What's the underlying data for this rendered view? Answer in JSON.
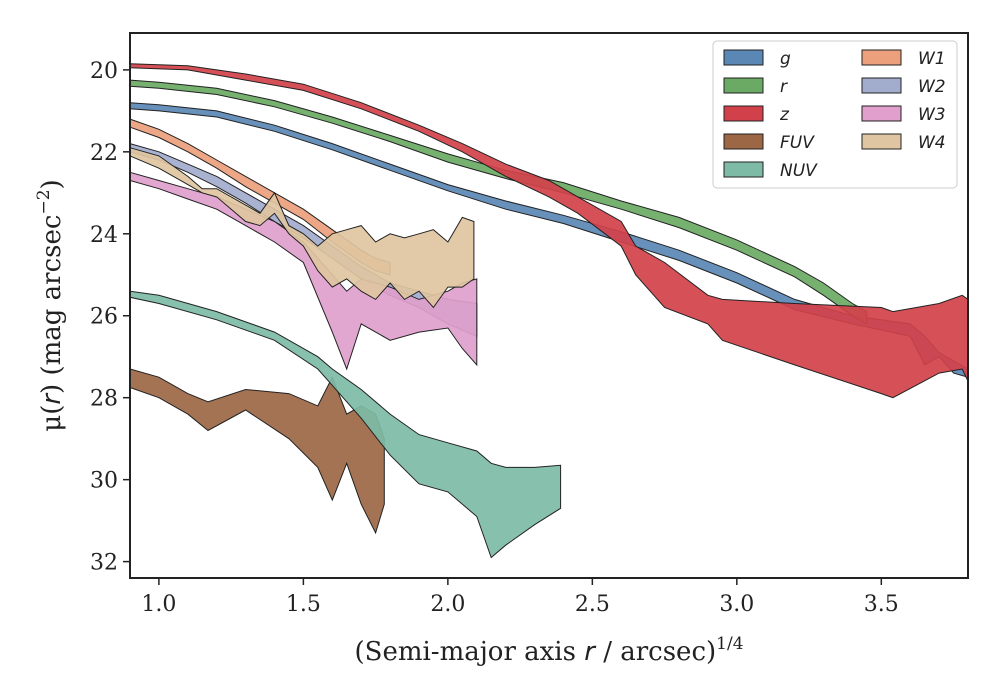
{
  "chart_data": {
    "type": "area",
    "title": "",
    "xlabel": "(Semi-major axis r / arcsec)^{1/4}",
    "ylabel": "μ(r) (mag arcsec^{−2})",
    "xlabel_parts": [
      "(Semi-major axis ",
      "r",
      " / arcsec)",
      "1/4"
    ],
    "ylabel_parts": [
      "μ(",
      "r",
      ") (mag arcsec",
      "−2",
      ")"
    ],
    "xlim": [
      0.9,
      3.8
    ],
    "ylim": [
      32.4,
      19.1
    ],
    "y_inverted": true,
    "xticks": [
      1.0,
      1.5,
      2.0,
      2.5,
      3.0,
      3.5
    ],
    "xtick_labels": [
      "1.0",
      "1.5",
      "2.0",
      "2.5",
      "3.0",
      "3.5"
    ],
    "yticks": [
      20,
      22,
      24,
      26,
      28,
      30,
      32
    ],
    "ytick_labels": [
      "20",
      "22",
      "24",
      "26",
      "28",
      "30",
      "32"
    ],
    "grid": false,
    "legend_position": "top-right",
    "legend_columns": 2,
    "series": [
      {
        "name": "g",
        "color": "#5a87b4",
        "x": [
          0.9,
          1.0,
          1.2,
          1.4,
          1.6,
          1.8,
          2.0,
          2.2,
          2.4,
          2.6,
          2.8,
          3.0,
          3.2,
          3.4,
          3.6,
          3.65,
          3.7,
          3.75,
          3.8
        ],
        "y1": [
          20.8,
          20.85,
          21.0,
          21.35,
          21.8,
          22.3,
          22.8,
          23.2,
          23.55,
          23.95,
          24.4,
          24.95,
          25.6,
          26.0,
          26.2,
          26.5,
          26.9,
          27.1,
          27.3
        ],
        "y2": [
          20.95,
          21.0,
          21.15,
          21.5,
          21.95,
          22.45,
          22.95,
          23.4,
          23.75,
          24.2,
          24.65,
          25.2,
          25.85,
          26.2,
          26.5,
          27.2,
          27.0,
          27.4,
          27.5
        ]
      },
      {
        "name": "r",
        "color": "#6aaa64",
        "x": [
          0.9,
          1.0,
          1.2,
          1.4,
          1.6,
          1.8,
          2.0,
          2.2,
          2.4,
          2.6,
          2.8,
          3.0,
          3.2,
          3.3,
          3.4,
          3.45
        ],
        "y1": [
          20.25,
          20.3,
          20.45,
          20.75,
          21.15,
          21.6,
          22.05,
          22.45,
          22.75,
          23.2,
          23.6,
          24.15,
          24.8,
          25.2,
          25.7,
          25.9
        ],
        "y2": [
          20.4,
          20.45,
          20.6,
          20.9,
          21.3,
          21.75,
          22.25,
          22.65,
          23.0,
          23.4,
          23.85,
          24.4,
          25.05,
          25.5,
          26.0,
          26.2
        ]
      },
      {
        "name": "z",
        "color": "#d2414a",
        "x": [
          0.9,
          1.1,
          1.3,
          1.5,
          1.7,
          1.9,
          2.05,
          2.2,
          2.35,
          2.45,
          2.6,
          2.65,
          2.75,
          2.9,
          2.95,
          3.2,
          3.5,
          3.54,
          3.7,
          3.78,
          3.8
        ],
        "y1": [
          19.85,
          19.9,
          20.1,
          20.35,
          20.8,
          21.35,
          21.8,
          22.3,
          22.7,
          23.1,
          23.7,
          24.3,
          24.7,
          25.5,
          25.6,
          25.7,
          25.8,
          25.9,
          25.7,
          25.5,
          25.6
        ],
        "y2": [
          19.95,
          20.0,
          20.25,
          20.5,
          20.95,
          21.5,
          22.0,
          22.6,
          23.1,
          23.5,
          24.3,
          25.0,
          25.8,
          26.2,
          26.6,
          27.2,
          27.9,
          28.0,
          27.4,
          27.3,
          27.6
        ]
      },
      {
        "name": "FUV",
        "color": "#9c6744",
        "x": [
          0.9,
          1.0,
          1.1,
          1.17,
          1.3,
          1.45,
          1.55,
          1.6,
          1.65,
          1.7,
          1.75,
          1.78
        ],
        "y1": [
          27.3,
          27.5,
          27.9,
          28.1,
          27.8,
          27.9,
          28.2,
          27.5,
          28.4,
          28.2,
          28.4,
          29.0
        ],
        "y2": [
          27.75,
          28.0,
          28.4,
          28.8,
          28.3,
          29.0,
          29.7,
          30.5,
          29.6,
          30.6,
          31.3,
          30.6
        ]
      },
      {
        "name": "NUV",
        "color": "#7dbba6",
        "x": [
          0.9,
          1.0,
          1.2,
          1.4,
          1.55,
          1.6,
          1.7,
          1.8,
          1.9,
          2.0,
          2.1,
          2.15,
          2.2,
          2.3,
          2.39
        ],
        "y1": [
          25.4,
          25.5,
          25.9,
          26.4,
          27.0,
          27.3,
          27.8,
          28.4,
          28.9,
          29.1,
          29.3,
          29.6,
          29.7,
          29.7,
          29.65
        ],
        "y2": [
          25.55,
          25.7,
          26.1,
          26.6,
          27.3,
          27.7,
          28.5,
          29.4,
          30.1,
          30.3,
          30.9,
          31.9,
          31.6,
          31.1,
          30.7
        ]
      },
      {
        "name": "W1",
        "color": "#eca07c",
        "x": [
          0.9,
          1.0,
          1.1,
          1.2,
          1.3,
          1.4,
          1.5,
          1.6,
          1.7,
          1.75,
          1.8
        ],
        "y1": [
          21.2,
          21.45,
          21.8,
          22.2,
          22.6,
          23.0,
          23.4,
          23.9,
          24.4,
          24.6,
          24.7
        ],
        "y2": [
          21.4,
          21.65,
          22.0,
          22.4,
          22.85,
          23.25,
          23.65,
          24.2,
          24.7,
          24.9,
          25.0
        ]
      },
      {
        "name": "W2",
        "color": "#a2adcd",
        "x": [
          0.9,
          1.0,
          1.1,
          1.2,
          1.3,
          1.4,
          1.5,
          1.6,
          1.7,
          1.8,
          1.9,
          2.0,
          2.1
        ],
        "y1": [
          21.8,
          22.0,
          22.3,
          22.6,
          23.0,
          23.4,
          23.8,
          24.3,
          24.8,
          25.2,
          25.4,
          25.6,
          25.7
        ],
        "y2": [
          22.0,
          22.2,
          22.5,
          22.85,
          23.25,
          23.7,
          24.1,
          24.6,
          25.1,
          25.5,
          25.8,
          26.2,
          26.5
        ]
      },
      {
        "name": "W3",
        "color": "#e09fcc",
        "x": [
          0.9,
          1.0,
          1.1,
          1.2,
          1.3,
          1.4,
          1.5,
          1.6,
          1.65,
          1.7,
          1.8,
          1.9,
          2.0,
          2.05,
          2.1
        ],
        "y1": [
          22.5,
          22.7,
          22.9,
          23.1,
          23.4,
          23.7,
          24.2,
          25.0,
          25.4,
          25.1,
          25.3,
          25.6,
          25.4,
          25.2,
          25.1
        ],
        "y2": [
          22.7,
          22.9,
          23.15,
          23.4,
          23.8,
          24.2,
          24.7,
          26.4,
          27.3,
          26.2,
          26.6,
          26.4,
          26.3,
          26.8,
          27.2
        ]
      },
      {
        "name": "W4",
        "color": "#dfc5a1",
        "x": [
          0.9,
          1.0,
          1.1,
          1.15,
          1.2,
          1.3,
          1.35,
          1.4,
          1.45,
          1.5,
          1.55,
          1.6,
          1.65,
          1.7,
          1.75,
          1.8,
          1.85,
          1.9,
          1.95,
          2.0,
          2.05,
          2.09
        ],
        "y1": [
          21.9,
          22.1,
          22.6,
          22.9,
          22.9,
          23.3,
          23.5,
          23.0,
          23.8,
          24.0,
          24.3,
          24.0,
          23.9,
          23.8,
          24.2,
          24.0,
          24.1,
          24.0,
          23.9,
          24.2,
          23.6,
          23.7
        ],
        "y2": [
          22.1,
          22.4,
          22.8,
          23.0,
          23.1,
          23.7,
          23.8,
          23.5,
          24.0,
          24.3,
          24.9,
          25.3,
          25.1,
          25.4,
          25.6,
          25.2,
          25.6,
          25.4,
          25.8,
          25.3,
          25.3,
          25.1
        ]
      }
    ]
  }
}
